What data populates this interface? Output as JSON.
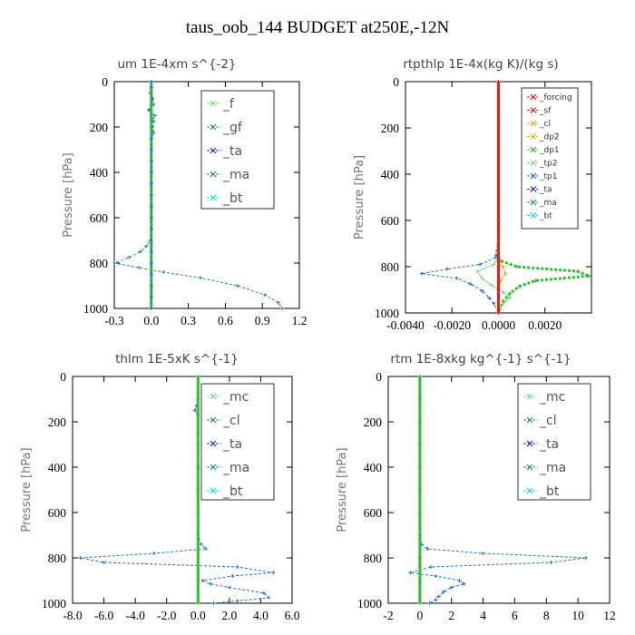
{
  "figure": {
    "title": "taus_oob_144  BUDGET at250E,-12N"
  },
  "colors": {
    "red": "#e8201c",
    "orange": "#f29a1e",
    "gold": "#e6b800",
    "green": "#2fbf2f",
    "ltgreen": "#7fd87f",
    "teal": "#2a8a8a",
    "blue": "#1f6fd6",
    "navy": "#2233bb",
    "cyan": "#22d8e8"
  },
  "chart_data": [
    {
      "type": "line",
      "title": "um  1E-4xm s^{-2}",
      "ylabel": "Pressure [hPa]",
      "xlim": [
        -0.3,
        1.2
      ],
      "xticks": [
        "-0.3",
        "0.0",
        "0.3",
        "0.6",
        "0.9",
        "1.2"
      ],
      "xtick_values": [
        -0.3,
        0.0,
        0.3,
        0.6,
        0.9,
        1.2
      ],
      "ylim": [
        1000,
        0
      ],
      "yticks": [
        "0",
        "200",
        "400",
        "600",
        "800",
        "1000"
      ],
      "ytick_values": [
        0,
        200,
        400,
        600,
        800,
        1000
      ],
      "legend_style": "big",
      "legend": [
        "_f",
        "_gf",
        "_ta",
        "_ma",
        "_bt"
      ],
      "legend_colors": [
        "ltgreen",
        "teal",
        "navy",
        "teal",
        "cyan"
      ],
      "series": [
        {
          "name": "_gf",
          "color": "teal",
          "dashed": true,
          "points": [
            [
              0,
              0
            ],
            [
              0,
              25
            ],
            [
              -0.01,
              50
            ],
            [
              0.01,
              75
            ],
            [
              0.02,
              100
            ],
            [
              -0.02,
              125
            ],
            [
              0.03,
              150
            ],
            [
              0,
              175
            ],
            [
              0.01,
              200
            ],
            [
              0.02,
              225
            ],
            [
              0,
              250
            ],
            [
              0,
              300
            ],
            [
              0,
              350
            ],
            [
              0,
              400
            ],
            [
              0,
              450
            ],
            [
              0,
              500
            ],
            [
              0,
              550
            ],
            [
              0,
              600
            ],
            [
              0,
              650
            ],
            [
              -0.01,
              700
            ],
            [
              -0.04,
              725
            ],
            [
              -0.09,
              750
            ],
            [
              -0.18,
              775
            ],
            [
              -0.3,
              800
            ],
            [
              -0.1,
              820
            ],
            [
              0.1,
              840
            ],
            [
              0.4,
              865
            ],
            [
              0.7,
              900
            ],
            [
              0.92,
              940
            ],
            [
              1.03,
              975
            ],
            [
              1.06,
              1000
            ]
          ]
        },
        {
          "name": "_f",
          "color": "green",
          "dashed": false,
          "points": [
            [
              0,
              0
            ],
            [
              0,
              100
            ],
            [
              0,
              200
            ],
            [
              0,
              300
            ],
            [
              0,
              400
            ],
            [
              0,
              500
            ],
            [
              0,
              600
            ],
            [
              0,
              700
            ],
            [
              0,
              800
            ],
            [
              0,
              900
            ],
            [
              0,
              1000
            ]
          ]
        },
        {
          "name": "_bt",
          "color": "blue",
          "dashed": true,
          "points": [
            [
              0,
              0
            ],
            [
              0,
              25
            ],
            [
              0.01,
              75
            ],
            [
              -0.02,
              125
            ],
            [
              0.02,
              175
            ],
            [
              0,
              250
            ],
            [
              0,
              300
            ],
            [
              0,
              350
            ],
            [
              0,
              400
            ],
            [
              0,
              450
            ],
            [
              0,
              500
            ],
            [
              0,
              550
            ],
            [
              0,
              600
            ],
            [
              0,
              650
            ],
            [
              0,
              700
            ],
            [
              0,
              750
            ],
            [
              0,
              800
            ],
            [
              0,
              850
            ],
            [
              0,
              900
            ],
            [
              0,
              950
            ],
            [
              0,
              1000
            ]
          ]
        }
      ]
    },
    {
      "type": "line",
      "title": "rtpthlp  1E-4x(kg K)/(kg s)",
      "ylabel": "Pressure [hPa]",
      "xlim": [
        -0.004,
        0.004
      ],
      "xticks": [
        "-0.0040",
        "-0.0020",
        "0.0000",
        "0.0020"
      ],
      "xtick_values": [
        -0.004,
        -0.002,
        0.0,
        0.002
      ],
      "ylim": [
        1000,
        0
      ],
      "yticks": [
        "0",
        "200",
        "400",
        "600",
        "800",
        "1000"
      ],
      "ytick_values": [
        0,
        200,
        400,
        600,
        800,
        1000
      ],
      "legend_style": "small",
      "legend": [
        "_forcing",
        "_sf",
        "_cl",
        "_dp2",
        "_dp1",
        "_tp2",
        "_tp1",
        "_ta",
        "_ma",
        "_bt"
      ],
      "legend_colors": [
        "red",
        "red",
        "orange",
        "gold",
        "green",
        "ltgreen",
        "blue",
        "navy",
        "teal",
        "cyan"
      ],
      "series": [
        {
          "name": "_dp1",
          "color": "green",
          "dashed": true,
          "points": [
            [
              0,
              0
            ],
            [
              0,
              700
            ],
            [
              -0.0001,
              750
            ],
            [
              0.0001,
              775
            ],
            [
              0.0008,
              800
            ],
            [
              0.0034,
              820
            ],
            [
              0.0039,
              840
            ],
            [
              0.0016,
              860
            ],
            [
              0.0009,
              885
            ],
            [
              0.0005,
              915
            ],
            [
              0.0002,
              950
            ],
            [
              0,
              1000
            ]
          ]
        },
        {
          "name": "_tp1",
          "color": "blue",
          "dashed": true,
          "points": [
            [
              0,
              0
            ],
            [
              0,
              700
            ],
            [
              -0.0001,
              760
            ],
            [
              -0.0008,
              790
            ],
            [
              -0.0022,
              810
            ],
            [
              -0.0033,
              830
            ],
            [
              -0.0018,
              850
            ],
            [
              -0.0012,
              875
            ],
            [
              -0.0007,
              905
            ],
            [
              -0.0004,
              935
            ],
            [
              -0.0002,
              960
            ],
            [
              0,
              1000
            ]
          ]
        },
        {
          "name": "_tp2",
          "color": "ltgreen",
          "dashed": false,
          "points": [
            [
              0,
              760
            ],
            [
              -0.0002,
              790
            ],
            [
              -0.0009,
              820
            ],
            [
              -0.0007,
              850
            ],
            [
              -0.0003,
              880
            ],
            [
              0.0002,
              910
            ],
            [
              0.0005,
              935
            ],
            [
              0.0002,
              960
            ],
            [
              0,
              1000
            ]
          ]
        },
        {
          "name": "_cl",
          "color": "orange",
          "dashed": false,
          "points": [
            [
              0,
              780
            ],
            [
              0.0002,
              800
            ],
            [
              0.0003,
              830
            ],
            [
              0.0001,
              860
            ],
            [
              0,
              900
            ]
          ]
        },
        {
          "name": "_forcing",
          "color": "red",
          "dashed": false,
          "points": [
            [
              0,
              0
            ],
            [
              0,
              100
            ],
            [
              0,
              200
            ],
            [
              0,
              300
            ],
            [
              0,
              400
            ],
            [
              0,
              500
            ],
            [
              0,
              600
            ],
            [
              0,
              700
            ],
            [
              0,
              800
            ],
            [
              0,
              900
            ],
            [
              0,
              1000
            ]
          ]
        }
      ]
    },
    {
      "type": "line",
      "title": "thlm  1E-5xK s^{-1}",
      "ylabel": "Pressure [hPa]",
      "xlim": [
        -8.0,
        6.0
      ],
      "xticks": [
        "-8.0",
        "-6.0",
        "-4.0",
        "-2.0",
        "0.0",
        "2.0",
        "4.0",
        "6.0"
      ],
      "xtick_values": [
        -8,
        -6,
        -4,
        -2,
        0,
        2,
        4,
        6
      ],
      "ylim": [
        1000,
        0
      ],
      "yticks": [
        "0",
        "200",
        "400",
        "600",
        "800",
        "1000"
      ],
      "ytick_values": [
        0,
        200,
        400,
        600,
        800,
        1000
      ],
      "legend_style": "big",
      "legend": [
        "_mc",
        "_cl",
        "_ta",
        "_ma",
        "_bt"
      ],
      "legend_colors": [
        "ltgreen",
        "teal",
        "navy",
        "teal",
        "cyan"
      ],
      "series": [
        {
          "name": "_cl",
          "color": "blue",
          "dashed": true,
          "points": [
            [
              0,
              0
            ],
            [
              0,
              100
            ],
            [
              -0.1,
              130
            ],
            [
              -0.2,
              150
            ],
            [
              0,
              170
            ],
            [
              0,
              250
            ],
            [
              0,
              300
            ],
            [
              0,
              400
            ],
            [
              0,
              500
            ],
            [
              0,
              600
            ],
            [
              0,
              700
            ],
            [
              0.2,
              740
            ],
            [
              0.5,
              760
            ],
            [
              -2.8,
              780
            ],
            [
              -7.5,
              800
            ],
            [
              -6.0,
              820
            ],
            [
              2.5,
              840
            ],
            [
              4.8,
              865
            ],
            [
              2.2,
              880
            ],
            [
              0.3,
              900
            ],
            [
              0.8,
              915
            ],
            [
              2.0,
              930
            ],
            [
              4.2,
              955
            ],
            [
              4.5,
              975
            ],
            [
              2.5,
              990
            ],
            [
              1.0,
              1000
            ]
          ]
        },
        {
          "name": "_mc",
          "color": "green",
          "dashed": false,
          "points": [
            [
              0,
              0
            ],
            [
              0,
              100
            ],
            [
              0,
              200
            ],
            [
              0,
              300
            ],
            [
              0,
              400
            ],
            [
              0,
              500
            ],
            [
              0,
              600
            ],
            [
              0,
              700
            ],
            [
              0,
              800
            ],
            [
              0,
              900
            ],
            [
              0,
              1000
            ]
          ]
        }
      ]
    },
    {
      "type": "line",
      "title": "rtm  1E-8xkg kg^{-1} s^{-1}",
      "ylabel": "Pressure [hPa]",
      "xlim": [
        -2,
        12
      ],
      "xticks": [
        "-2",
        "0",
        "2",
        "4",
        "6",
        "8",
        "10",
        "12"
      ],
      "xtick_values": [
        -2,
        0,
        2,
        4,
        6,
        8,
        10,
        12
      ],
      "ylim": [
        1000,
        0
      ],
      "yticks": [
        "0",
        "200",
        "400",
        "600",
        "800",
        "1000"
      ],
      "ytick_values": [
        0,
        200,
        400,
        600,
        800,
        1000
      ],
      "legend_style": "big",
      "legend": [
        "_mc",
        "_cl",
        "_ta",
        "_ma",
        "_bt"
      ],
      "legend_colors": [
        "ltgreen",
        "teal",
        "navy",
        "teal",
        "cyan"
      ],
      "series": [
        {
          "name": "_cl",
          "color": "blue",
          "dashed": true,
          "points": [
            [
              0,
              0
            ],
            [
              0,
              100
            ],
            [
              0,
              200
            ],
            [
              0,
              300
            ],
            [
              0,
              400
            ],
            [
              0,
              500
            ],
            [
              0,
              600
            ],
            [
              0,
              700
            ],
            [
              0.1,
              740
            ],
            [
              0.5,
              760
            ],
            [
              4.0,
              780
            ],
            [
              10.5,
              800
            ],
            [
              8.3,
              820
            ],
            [
              0.7,
              840
            ],
            [
              -0.6,
              865
            ],
            [
              1.0,
              880
            ],
            [
              2.5,
              900
            ],
            [
              2.8,
              915
            ],
            [
              2.0,
              930
            ],
            [
              1.5,
              950
            ],
            [
              1.2,
              970
            ],
            [
              1.0,
              985
            ],
            [
              0.6,
              1000
            ]
          ]
        },
        {
          "name": "_mc",
          "color": "green",
          "dashed": false,
          "points": [
            [
              0,
              0
            ],
            [
              0,
              100
            ],
            [
              0,
              200
            ],
            [
              0,
              300
            ],
            [
              0,
              400
            ],
            [
              0,
              500
            ],
            [
              0,
              600
            ],
            [
              0,
              700
            ],
            [
              0,
              800
            ],
            [
              0,
              900
            ],
            [
              0,
              1000
            ]
          ]
        }
      ]
    }
  ]
}
